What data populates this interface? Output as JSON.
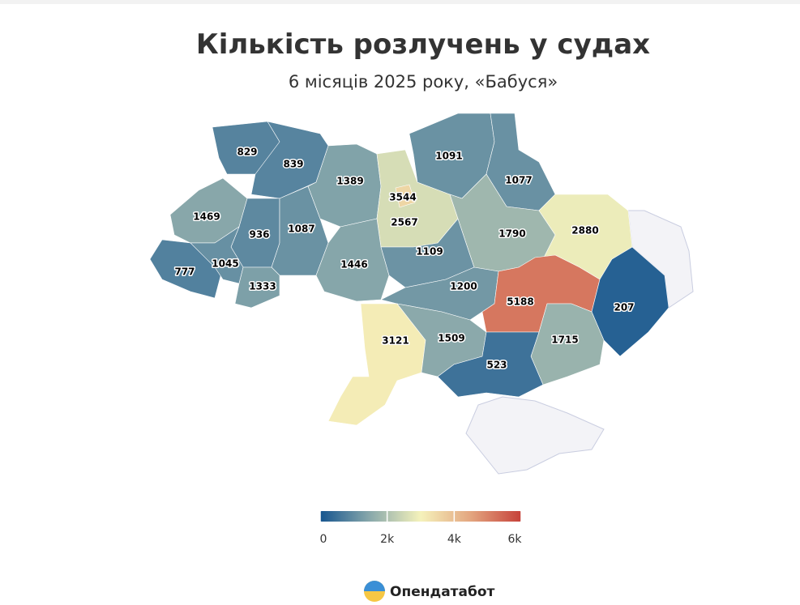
{
  "chart_data": {
    "type": "choropleth",
    "title": "Кількість розлучень у судах",
    "subtitle": "6 місяців 2025 року, «Бабуся»",
    "values": [
      829,
      839,
      1469,
      936,
      1087,
      1389,
      2567,
      3544,
      777,
      1045,
      1333,
      1446,
      1091,
      1077,
      1109,
      1790,
      2880,
      1200,
      5188,
      207,
      3121,
      1509,
      1715,
      523
    ],
    "colorscale": [
      "#16558f",
      "#8aa9ab",
      "#f5f2bb",
      "#e3a57f",
      "#c6413a"
    ],
    "no_data_color": "#f3f3f7",
    "clim": [
      0,
      6000
    ],
    "cticks": [
      0,
      {
        "value": 2000,
        "label": "2k"
      },
      {
        "value": 4000,
        "label": "4k"
      },
      {
        "value": 6000,
        "label": "6k"
      }
    ]
  },
  "brand": "Опендатабот"
}
